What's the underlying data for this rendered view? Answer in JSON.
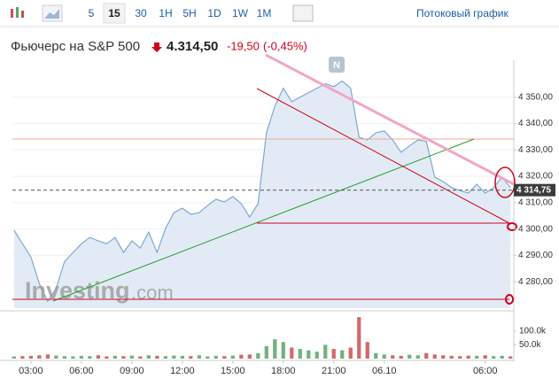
{
  "toolbar": {
    "buttons": [
      "5",
      "15",
      "30",
      "1H",
      "5H",
      "1D",
      "1W",
      "1M"
    ],
    "active": "15",
    "stream_link": "Потоковый график"
  },
  "header": {
    "title": "Фьючерс на S&P 500",
    "price": "4.314,50",
    "change": "-19,50",
    "change_pct": "(-0,45%)"
  },
  "watermark": {
    "brand": "Investing",
    "suffix": ".com"
  },
  "news_marker": "N",
  "chart_data": {
    "type": "area",
    "x": [
      2,
      2.5,
      3,
      3.5,
      4,
      4.5,
      5,
      5.5,
      6,
      6.5,
      7,
      7.5,
      8,
      8.5,
      9,
      9.5,
      10,
      10.5,
      11,
      11.5,
      12,
      12.5,
      13,
      13.5,
      14,
      14.5,
      15,
      15.5,
      16,
      16.5,
      17,
      17.5,
      18,
      18.5,
      19,
      19.5,
      20,
      20.5,
      21,
      21.5,
      22,
      22.5,
      23,
      23.5,
      24,
      24.5,
      25,
      25.5,
      26,
      26.5,
      27,
      27.5,
      28,
      28.5,
      29,
      29.5,
      30,
      30.5,
      31,
      31.5
    ],
    "values": [
      4299.5,
      4294.4,
      4289.4,
      4279.3,
      4272.6,
      4277.6,
      4287.7,
      4291.1,
      4294.4,
      4296.8,
      4295.5,
      4294.4,
      4296.8,
      4291.1,
      4295.5,
      4292.8,
      4298.8,
      4291.1,
      4300.2,
      4306.2,
      4307.9,
      4305.6,
      4306.2,
      4308.9,
      4311.3,
      4310.3,
      4312.3,
      4309.6,
      4304.5,
      4309.6,
      4336.5,
      4346.6,
      4353.4,
      4348.3,
      4350.0,
      4351.7,
      4353.4,
      4355.1,
      4354.0,
      4356.1,
      4353.4,
      4334.8,
      4333.8,
      4336.5,
      4337.2,
      4333.8,
      4329.1,
      4331.5,
      4333.8,
      4333.2,
      4319.7,
      4318.0,
      4315.7,
      4314.6,
      4313.6,
      4317.0,
      4313.6,
      4315.7,
      4319.7,
      4315.7
    ],
    "color": "#7fa8d1",
    "xlim": [
      1.9,
      31.7
    ],
    "xticks": [
      {
        "value": 3,
        "label": "03:00"
      },
      {
        "value": 6,
        "label": "06:00"
      },
      {
        "value": 9,
        "label": "09:00"
      },
      {
        "value": 12,
        "label": "12:00"
      },
      {
        "value": 15,
        "label": "15:00"
      },
      {
        "value": 18,
        "label": "18:00"
      },
      {
        "value": 21,
        "label": "21:00"
      },
      {
        "value": 24,
        "label": "06.10"
      },
      {
        "value": 30,
        "label": "06:00"
      }
    ],
    "ylim": [
      4270,
      4364
    ],
    "yticks": [
      {
        "value": 4280,
        "label": "4 280,00"
      },
      {
        "value": 4290,
        "label": "4 290,00"
      },
      {
        "value": 4300,
        "label": "4 300,00"
      },
      {
        "value": 4310,
        "label": "4 310,00"
      },
      {
        "value": 4320,
        "label": "4 320,00"
      },
      {
        "value": 4330,
        "label": "4 330,00"
      },
      {
        "value": 4340,
        "label": "4 340,00"
      },
      {
        "value": 4350,
        "label": "4 350,00"
      }
    ],
    "grid": true,
    "current_price": {
      "value": 4314.75,
      "label": "4 314,75"
    },
    "volume": {
      "values": [
        8000,
        9000,
        10000,
        12000,
        15000,
        11000,
        9000,
        8000,
        10000,
        9000,
        12000,
        8000,
        10000,
        9000,
        11000,
        8000,
        12000,
        10000,
        9000,
        11000,
        10000,
        9000,
        12000,
        8000,
        10000,
        9000,
        11000,
        14000,
        15000,
        20000,
        45000,
        70000,
        60000,
        40000,
        35000,
        30000,
        25000,
        50000,
        35000,
        30000,
        40000,
        150000,
        60000,
        20000,
        15000,
        12000,
        10000,
        14000,
        12000,
        20000,
        15000,
        12000,
        10000,
        9000,
        11000,
        10000,
        12000,
        9000,
        10000,
        8000
      ],
      "up_color": "#5aa469",
      "down_color": "#c9514f",
      "ylim": [
        0,
        160000
      ],
      "yticks": [
        {
          "value": 50000,
          "label": "50.0k"
        },
        {
          "value": 100000,
          "label": "100.0k"
        }
      ]
    }
  }
}
